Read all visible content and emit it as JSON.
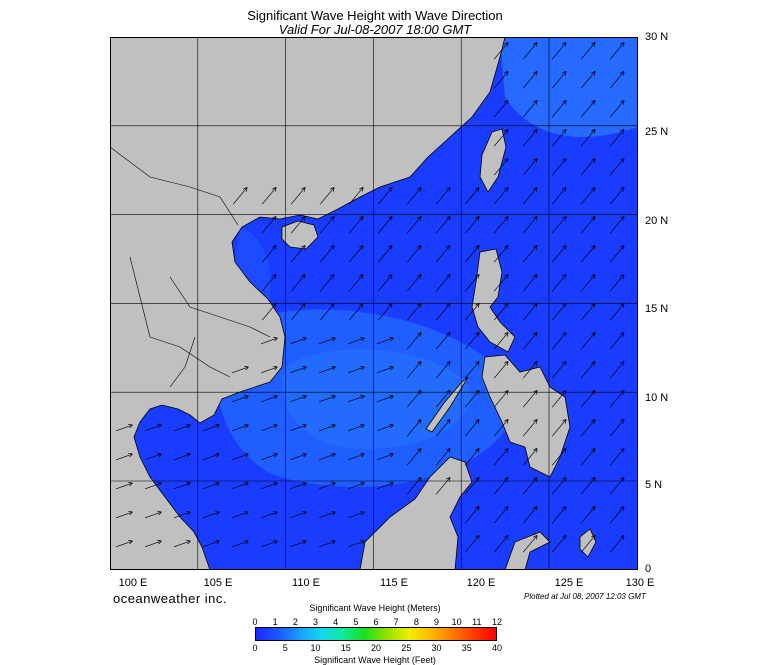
{
  "title": "Significant Wave Height with Wave Direction",
  "subtitle": "Valid For Jul-08-2007 18:00 GMT",
  "lat_labels": [
    "30 N",
    "25 N",
    "20 N",
    "15 N",
    "10 N",
    "5 N",
    "0"
  ],
  "lon_labels": [
    "100 E",
    "105 E",
    "110 E",
    "115 E",
    "120 E",
    "125 E",
    "130 E"
  ],
  "brand": "oceanweather inc.",
  "plotted": "Plotted at Jul 08, 2007 12:03 GMT",
  "colorbar": {
    "title_meters": "Significant Wave Height (Meters)",
    "title_feet": "Significant Wave Height (Feet)",
    "meters_ticks": [
      "0",
      "1",
      "2",
      "3",
      "4",
      "5",
      "6",
      "7",
      "8",
      "9",
      "10",
      "11",
      "12"
    ],
    "feet_ticks": [
      "0",
      "5",
      "10",
      "15",
      "20",
      "25",
      "30",
      "35",
      "40"
    ]
  },
  "colors": {
    "land": "#c0c0c0",
    "ocean": "#1636ff",
    "ocean_light": "#2a78f0",
    "grid": "#000000"
  },
  "wave_direction": "northeast"
}
